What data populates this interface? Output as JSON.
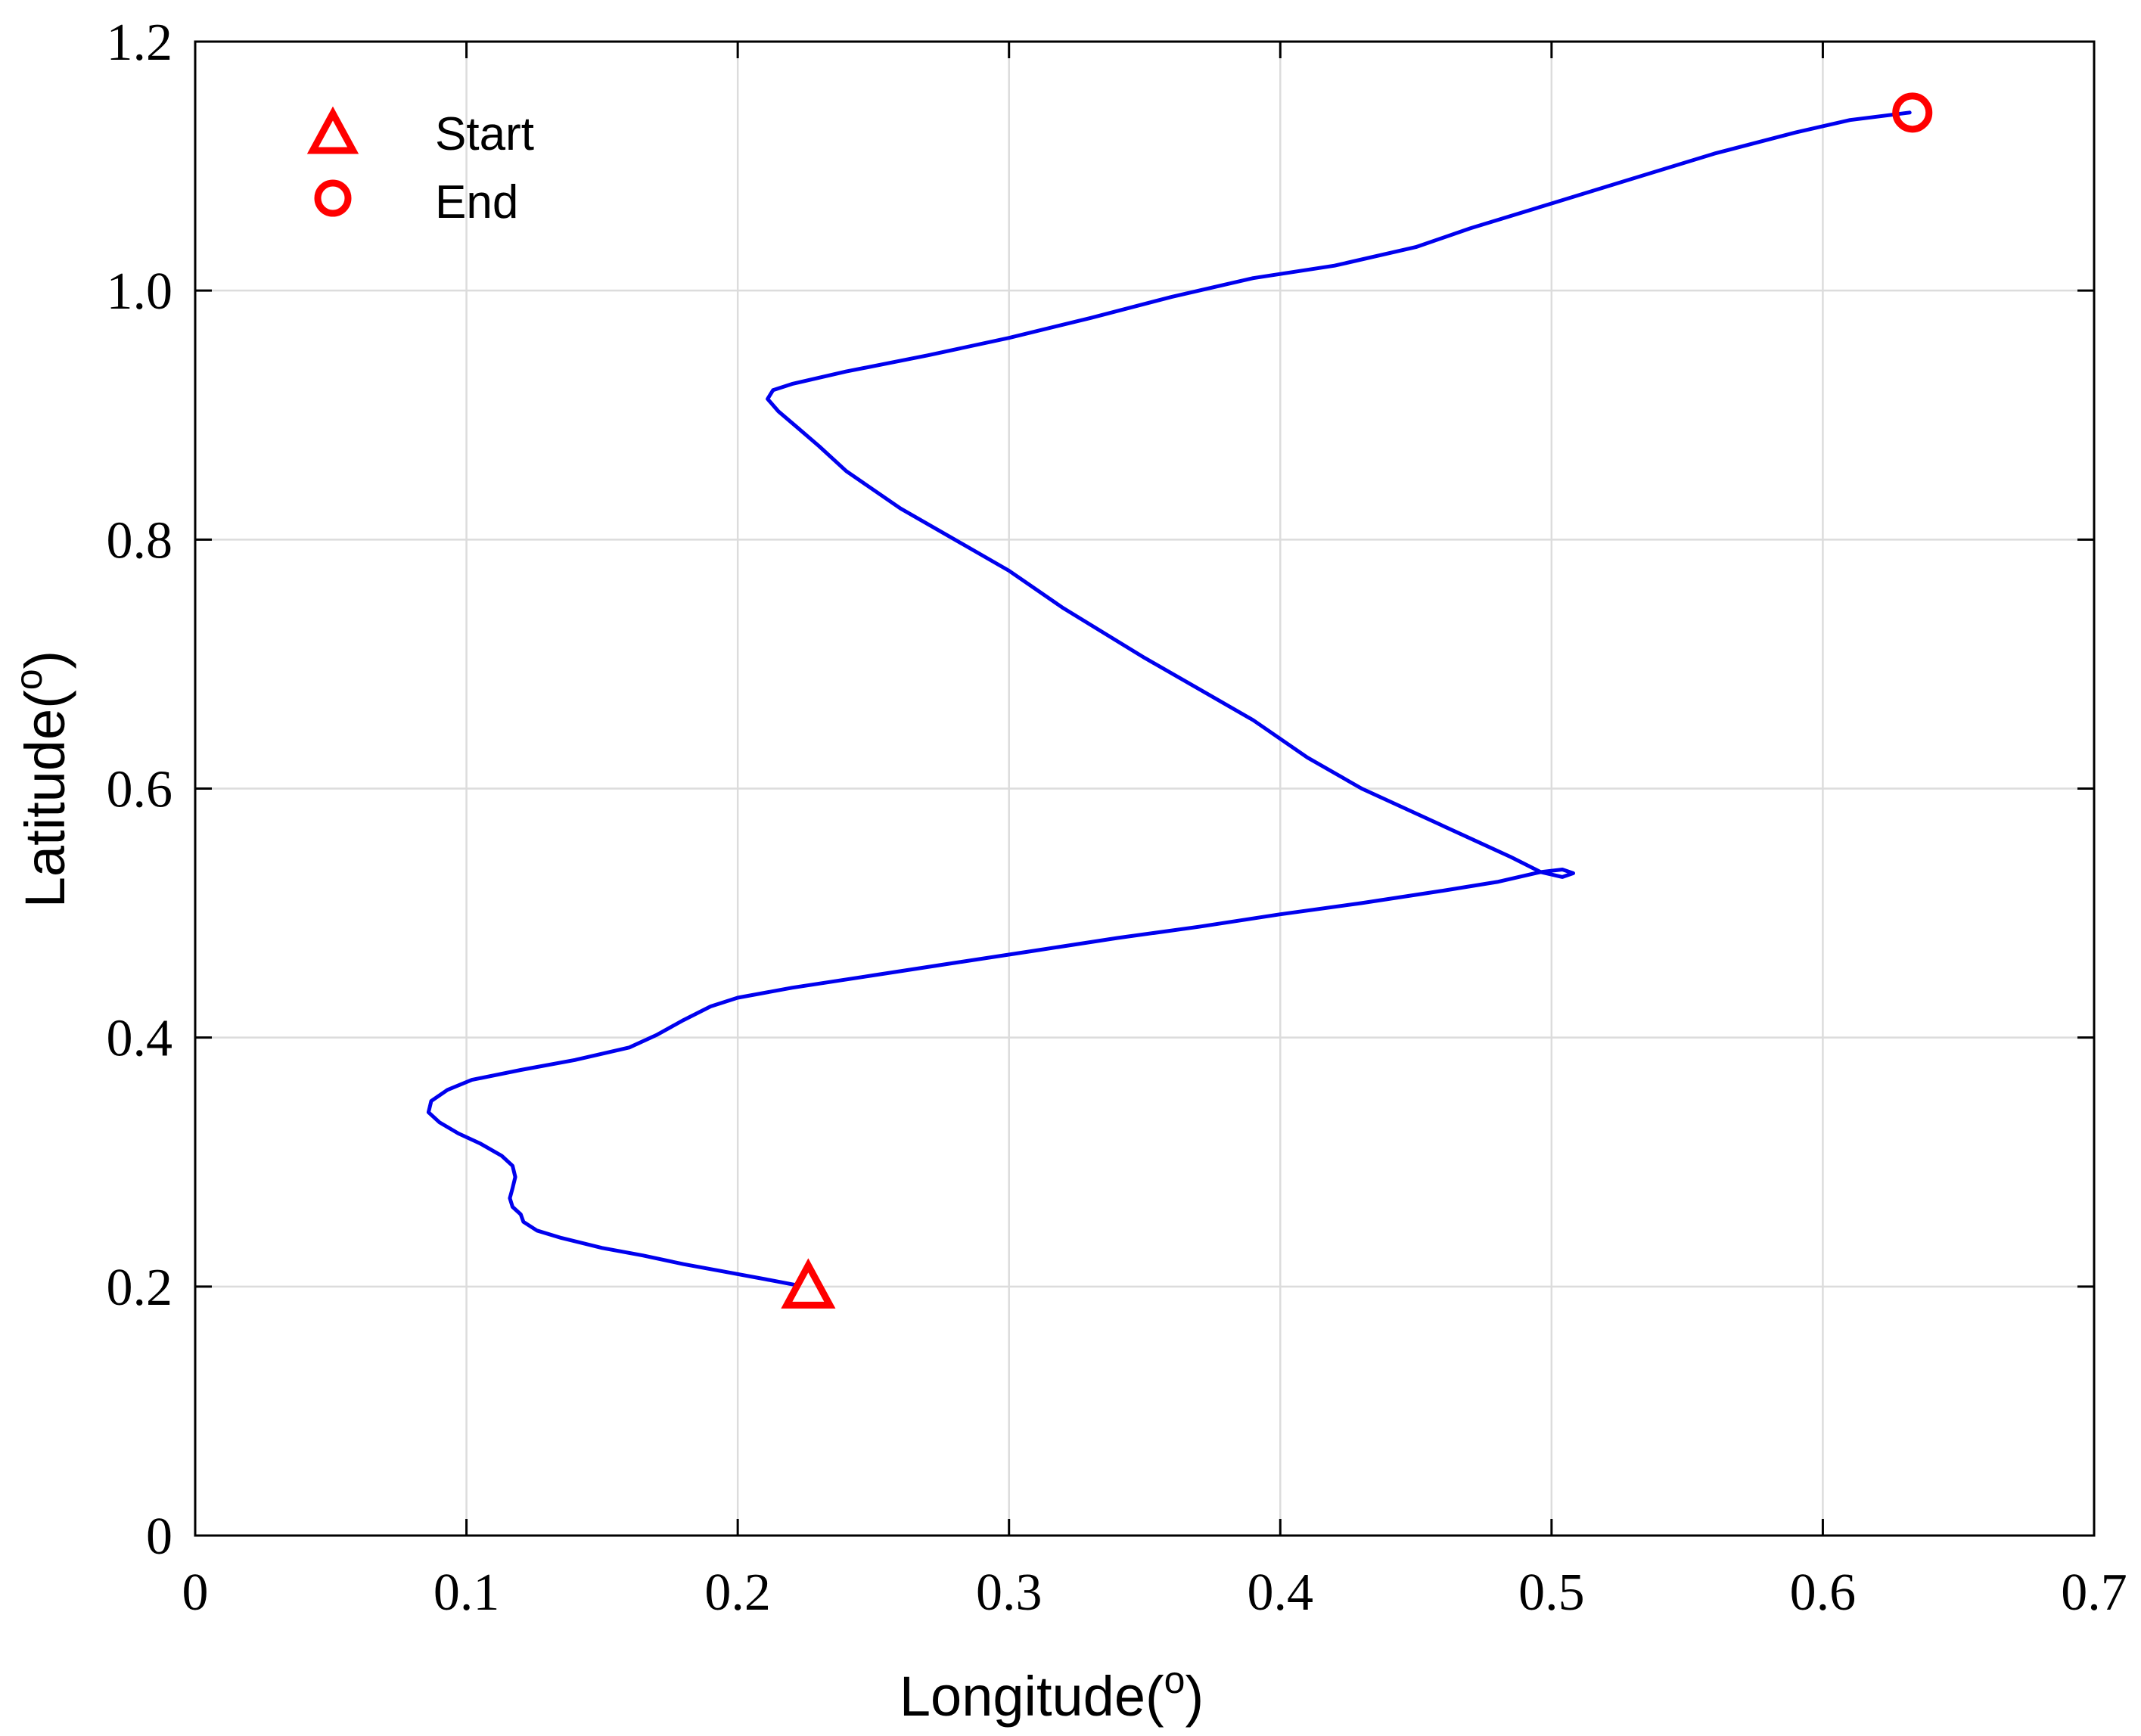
{
  "chart_data": {
    "type": "line",
    "xlabel": "Longitude(",
    "xlabel_sup": "o",
    "xlabel_close": ")",
    "ylabel": "Latitude(",
    "ylabel_sup": "o",
    "ylabel_close": ")",
    "xlim": [
      0,
      0.7
    ],
    "ylim": [
      0,
      1.2
    ],
    "xticks": [
      0,
      0.1,
      0.2,
      0.3,
      0.4,
      0.5,
      0.6,
      0.7
    ],
    "yticks": [
      0,
      0.2,
      0.4,
      0.6,
      0.8,
      1.0,
      1.2
    ],
    "xtick_labels": [
      "0",
      "0.1",
      "0.2",
      "0.3",
      "0.4",
      "0.5",
      "0.6",
      "0.7"
    ],
    "ytick_labels": [
      "0",
      "0.2",
      "0.4",
      "0.6",
      "0.8",
      "1.0",
      "1.2"
    ],
    "grid": true,
    "legend_position": "top-left",
    "legend": [
      {
        "label": "Start",
        "marker": "triangle",
        "color": "#ff0000"
      },
      {
        "label": "End",
        "marker": "circle",
        "color": "#ff0000"
      }
    ],
    "series": [
      {
        "color": "#0000ee",
        "points": [
          [
            0.222,
            0.201
          ],
          [
            0.21,
            0.206
          ],
          [
            0.195,
            0.212
          ],
          [
            0.18,
            0.218
          ],
          [
            0.165,
            0.225
          ],
          [
            0.15,
            0.231
          ],
          [
            0.135,
            0.239
          ],
          [
            0.126,
            0.245
          ],
          [
            0.121,
            0.252
          ],
          [
            0.12,
            0.258
          ],
          [
            0.117,
            0.264
          ],
          [
            0.116,
            0.271
          ],
          [
            0.117,
            0.279
          ],
          [
            0.118,
            0.288
          ],
          [
            0.117,
            0.297
          ],
          [
            0.113,
            0.305
          ],
          [
            0.105,
            0.315
          ],
          [
            0.097,
            0.323
          ],
          [
            0.09,
            0.332
          ],
          [
            0.086,
            0.34
          ],
          [
            0.087,
            0.349
          ],
          [
            0.093,
            0.358
          ],
          [
            0.102,
            0.366
          ],
          [
            0.12,
            0.374
          ],
          [
            0.14,
            0.382
          ],
          [
            0.16,
            0.392
          ],
          [
            0.17,
            0.402
          ],
          [
            0.18,
            0.414
          ],
          [
            0.19,
            0.425
          ],
          [
            0.2,
            0.432
          ],
          [
            0.22,
            0.44
          ],
          [
            0.25,
            0.45
          ],
          [
            0.28,
            0.46
          ],
          [
            0.31,
            0.47
          ],
          [
            0.34,
            0.48
          ],
          [
            0.37,
            0.489
          ],
          [
            0.4,
            0.499
          ],
          [
            0.43,
            0.508
          ],
          [
            0.46,
            0.518
          ],
          [
            0.48,
            0.525
          ],
          [
            0.496,
            0.533
          ],
          [
            0.504,
            0.535
          ],
          [
            0.508,
            0.532
          ],
          [
            0.504,
            0.529
          ],
          [
            0.496,
            0.533
          ],
          [
            0.485,
            0.545
          ],
          [
            0.47,
            0.56
          ],
          [
            0.45,
            0.58
          ],
          [
            0.43,
            0.6
          ],
          [
            0.41,
            0.625
          ],
          [
            0.39,
            0.655
          ],
          [
            0.37,
            0.68
          ],
          [
            0.35,
            0.705
          ],
          [
            0.32,
            0.745
          ],
          [
            0.3,
            0.775
          ],
          [
            0.28,
            0.8
          ],
          [
            0.26,
            0.825
          ],
          [
            0.24,
            0.855
          ],
          [
            0.23,
            0.875
          ],
          [
            0.222,
            0.89
          ],
          [
            0.215,
            0.903
          ],
          [
            0.211,
            0.913
          ],
          [
            0.213,
            0.92
          ],
          [
            0.22,
            0.925
          ],
          [
            0.24,
            0.935
          ],
          [
            0.27,
            0.948
          ],
          [
            0.3,
            0.962
          ],
          [
            0.33,
            0.978
          ],
          [
            0.36,
            0.995
          ],
          [
            0.39,
            1.01
          ],
          [
            0.42,
            1.02
          ],
          [
            0.45,
            1.035
          ],
          [
            0.47,
            1.05
          ],
          [
            0.5,
            1.07
          ],
          [
            0.53,
            1.09
          ],
          [
            0.56,
            1.11
          ],
          [
            0.59,
            1.127
          ],
          [
            0.61,
            1.137
          ],
          [
            0.632,
            1.143
          ]
        ]
      }
    ],
    "markers": {
      "start": {
        "x": 0.226,
        "y": 0.2
      },
      "end": {
        "x": 0.633,
        "y": 1.143
      }
    }
  }
}
